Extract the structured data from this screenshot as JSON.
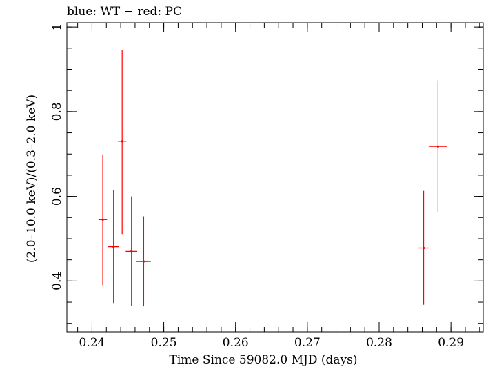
{
  "chart_data": {
    "type": "scatter",
    "title": "blue: WT − red: PC",
    "xlabel": "Time Since 59082.0 MJD (days)",
    "ylabel": "(2.0–10.0 keV)/(0.3–2.0 keV)",
    "xlim": [
      0.2365,
      0.2945
    ],
    "ylim": [
      0.28,
      1.01
    ],
    "x_ticks": [
      0.24,
      0.25,
      0.26,
      0.27,
      0.28,
      0.29
    ],
    "x_tick_labels": [
      "0.24",
      "0.25",
      "0.26",
      "0.27",
      "0.28",
      "0.29"
    ],
    "y_ticks": [
      0.4,
      0.6,
      0.8,
      1.0
    ],
    "y_tick_labels": [
      "0.4",
      "0.6",
      "0.8",
      "1"
    ],
    "grid": false,
    "series": [
      {
        "name": "PC",
        "color": "#ff0000",
        "points": [
          {
            "x": 0.2415,
            "xerr": 0.0006,
            "y": 0.545,
            "ylo": 0.39,
            "yhi": 0.698
          },
          {
            "x": 0.243,
            "xerr": 0.0008,
            "y": 0.481,
            "ylo": 0.348,
            "yhi": 0.614
          },
          {
            "x": 0.2442,
            "xerr": 0.0006,
            "y": 0.73,
            "ylo": 0.511,
            "yhi": 0.946
          },
          {
            "x": 0.2455,
            "xerr": 0.0008,
            "y": 0.47,
            "ylo": 0.342,
            "yhi": 0.6
          },
          {
            "x": 0.2472,
            "xerr": 0.001,
            "y": 0.446,
            "ylo": 0.34,
            "yhi": 0.553
          },
          {
            "x": 0.2862,
            "xerr": 0.0008,
            "y": 0.478,
            "ylo": 0.344,
            "yhi": 0.613
          },
          {
            "x": 0.2882,
            "xerr": 0.0013,
            "y": 0.718,
            "ylo": 0.562,
            "yhi": 0.874
          }
        ]
      },
      {
        "name": "WT",
        "color": "#0000ff",
        "points": []
      }
    ]
  }
}
